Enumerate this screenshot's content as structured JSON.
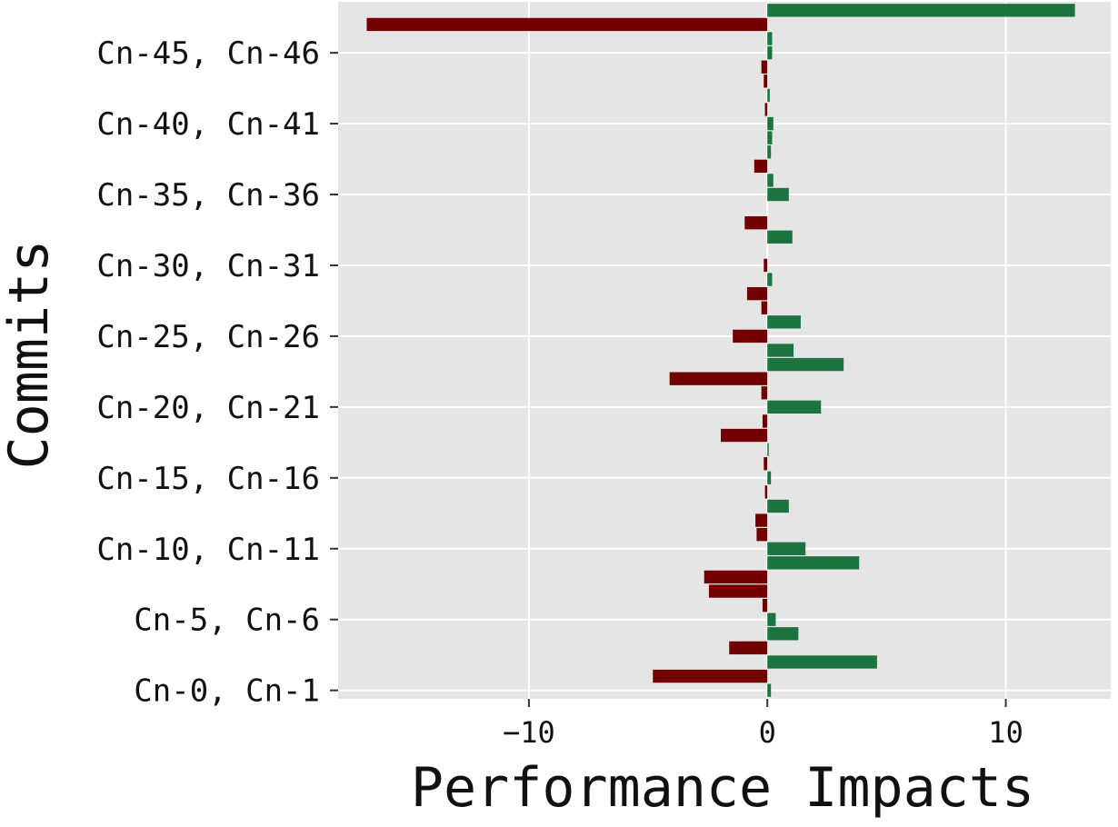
{
  "chart_data": {
    "type": "bar",
    "orientation": "horizontal",
    "xlabel": "Performance Impacts",
    "ylabel": "Commits",
    "xlim": [
      -18,
      14.4
    ],
    "x_ticks": [
      -10,
      0,
      10
    ],
    "x_tick_labels": [
      "−10",
      "0",
      "10"
    ],
    "grid": true,
    "y_tick_labels": [
      {
        "label": "Cn-0, Cn-1",
        "index": 0
      },
      {
        "label": "Cn-5, Cn-6",
        "index": 5
      },
      {
        "label": "Cn-10, Cn-11",
        "index": 10
      },
      {
        "label": "Cn-15, Cn-16",
        "index": 15
      },
      {
        "label": "Cn-20, Cn-21",
        "index": 20
      },
      {
        "label": "Cn-25, Cn-26",
        "index": 25
      },
      {
        "label": "Cn-30, Cn-31",
        "index": 30
      },
      {
        "label": "Cn-35, Cn-36",
        "index": 35
      },
      {
        "label": "Cn-40, Cn-41",
        "index": 40
      },
      {
        "label": "Cn-45, Cn-46",
        "index": 45
      }
    ],
    "values": [
      0.15,
      -4.8,
      4.6,
      -1.6,
      1.3,
      0.35,
      -0.2,
      -2.45,
      -2.65,
      3.85,
      1.6,
      -0.45,
      -0.5,
      0.9,
      -0.1,
      0.15,
      -0.15,
      0.05,
      -1.95,
      -0.2,
      2.25,
      -0.25,
      -4.1,
      3.2,
      1.1,
      -1.45,
      1.4,
      -0.25,
      -0.85,
      0.2,
      -0.15,
      0.0,
      1.05,
      -0.95,
      0.0,
      0.9,
      0.25,
      -0.55,
      0.15,
      0.2,
      0.25,
      -0.1,
      0.1,
      -0.15,
      -0.25,
      0.2,
      0.2,
      -16.8,
      12.9
    ],
    "colors": {
      "positive": "#1c7340",
      "negative": "#720000",
      "panel_background": "#e5e5e5",
      "grid": "#ffffff",
      "tick": "#333333"
    }
  }
}
